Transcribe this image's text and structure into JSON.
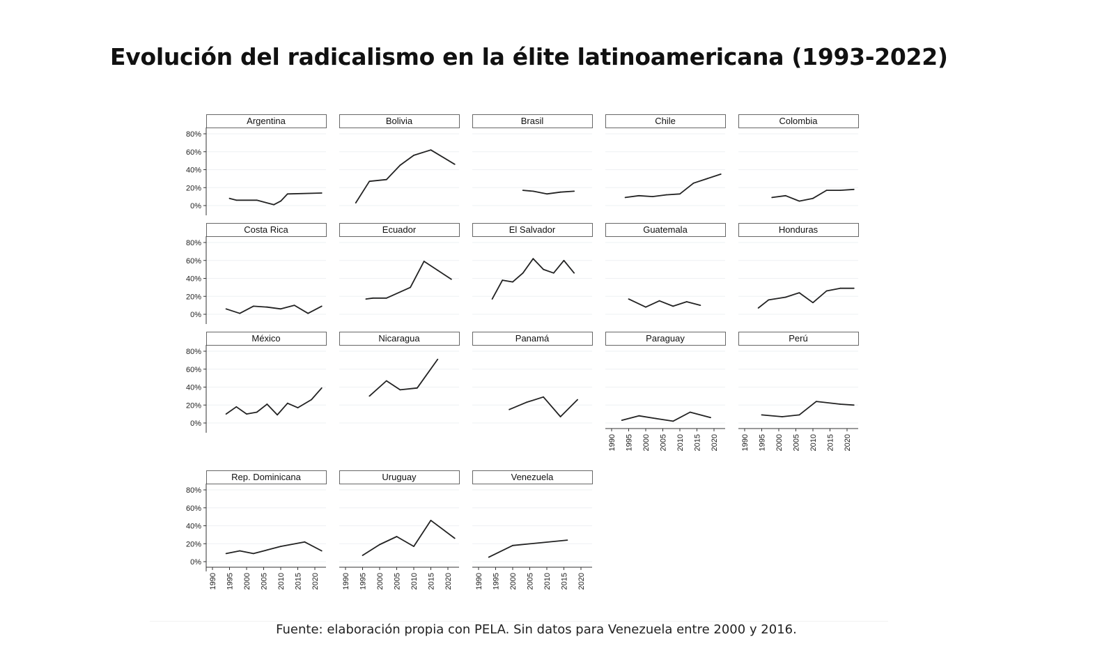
{
  "chart_data": {
    "type": "line",
    "title": "Evolución del radicalismo en la élite latinoamericana (1993-2022)",
    "note": "Fuente: elaboración propia con PELA. Sin datos para Venezuela entre 2000 y 2016.",
    "xlabel": "",
    "ylabel": "",
    "xlim": [
      1988,
      2023
    ],
    "ylim": [
      0,
      80
    ],
    "x_ticks": [
      "1990",
      "1995",
      "2000",
      "2005",
      "2010",
      "2015",
      "2020"
    ],
    "y_ticks": [
      "0%",
      "20%",
      "40%",
      "60%",
      "80%"
    ],
    "grid": true,
    "panels": [
      {
        "name": "Argentina",
        "points": [
          [
            1995,
            8
          ],
          [
            1997,
            6
          ],
          [
            2003,
            6
          ],
          [
            2008,
            1
          ],
          [
            2010,
            5
          ],
          [
            2012,
            13
          ],
          [
            2022,
            14
          ]
        ]
      },
      {
        "name": "Bolivia",
        "points": [
          [
            1993,
            3
          ],
          [
            1997,
            27
          ],
          [
            2002,
            29
          ],
          [
            2006,
            45
          ],
          [
            2010,
            56
          ],
          [
            2015,
            62
          ],
          [
            2022,
            46
          ]
        ]
      },
      {
        "name": "Brasil",
        "points": [
          [
            2003,
            17
          ],
          [
            2006,
            16
          ],
          [
            2010,
            13
          ],
          [
            2014,
            15
          ],
          [
            2018,
            16
          ]
        ]
      },
      {
        "name": "Chile",
        "points": [
          [
            1994,
            9
          ],
          [
            1998,
            11
          ],
          [
            2002,
            10
          ],
          [
            2006,
            12
          ],
          [
            2010,
            13
          ],
          [
            2014,
            25
          ],
          [
            2022,
            35
          ]
        ]
      },
      {
        "name": "Colombia",
        "points": [
          [
            1998,
            9
          ],
          [
            2002,
            11
          ],
          [
            2006,
            5
          ],
          [
            2010,
            8
          ],
          [
            2014,
            17
          ],
          [
            2018,
            17
          ],
          [
            2022,
            18
          ]
        ]
      },
      {
        "name": "Costa Rica",
        "points": [
          [
            1994,
            6
          ],
          [
            1998,
            1
          ],
          [
            2002,
            9
          ],
          [
            2006,
            8
          ],
          [
            2010,
            6
          ],
          [
            2014,
            10
          ],
          [
            2018,
            1
          ],
          [
            2022,
            9
          ]
        ]
      },
      {
        "name": "Ecuador",
        "points": [
          [
            1996,
            17
          ],
          [
            1998,
            18
          ],
          [
            2002,
            18
          ],
          [
            2009,
            30
          ],
          [
            2013,
            59
          ],
          [
            2017,
            49
          ],
          [
            2021,
            39
          ]
        ]
      },
      {
        "name": "El Salvador",
        "points": [
          [
            1994,
            17
          ],
          [
            1997,
            38
          ],
          [
            2000,
            36
          ],
          [
            2003,
            46
          ],
          [
            2006,
            62
          ],
          [
            2009,
            50
          ],
          [
            2012,
            46
          ],
          [
            2015,
            60
          ],
          [
            2018,
            46
          ]
        ]
      },
      {
        "name": "Guatemala",
        "points": [
          [
            1995,
            17
          ],
          [
            2000,
            8
          ],
          [
            2004,
            15
          ],
          [
            2008,
            9
          ],
          [
            2012,
            14
          ],
          [
            2016,
            10
          ]
        ]
      },
      {
        "name": "Honduras",
        "points": [
          [
            1994,
            7
          ],
          [
            1997,
            16
          ],
          [
            2002,
            19
          ],
          [
            2006,
            24
          ],
          [
            2010,
            13
          ],
          [
            2014,
            26
          ],
          [
            2018,
            29
          ],
          [
            2022,
            29
          ]
        ]
      },
      {
        "name": "México",
        "points": [
          [
            1994,
            10
          ],
          [
            1997,
            18
          ],
          [
            2000,
            10
          ],
          [
            2003,
            12
          ],
          [
            2006,
            21
          ],
          [
            2009,
            9
          ],
          [
            2012,
            22
          ],
          [
            2015,
            17
          ],
          [
            2019,
            26
          ],
          [
            2022,
            39
          ]
        ]
      },
      {
        "name": "Nicaragua",
        "points": [
          [
            1997,
            30
          ],
          [
            2002,
            47
          ],
          [
            2006,
            37
          ],
          [
            2011,
            39
          ],
          [
            2017,
            71
          ]
        ]
      },
      {
        "name": "Panamá",
        "points": [
          [
            1999,
            15
          ],
          [
            2004,
            23
          ],
          [
            2009,
            29
          ],
          [
            2014,
            7
          ],
          [
            2019,
            26
          ]
        ]
      },
      {
        "name": "Paraguay",
        "points": [
          [
            1993,
            3
          ],
          [
            1998,
            8
          ],
          [
            2003,
            5
          ],
          [
            2008,
            2
          ],
          [
            2013,
            12
          ],
          [
            2019,
            6
          ]
        ]
      },
      {
        "name": "Perú",
        "points": [
          [
            1995,
            9
          ],
          [
            2001,
            7
          ],
          [
            2006,
            9
          ],
          [
            2011,
            24
          ],
          [
            2018,
            21
          ],
          [
            2022,
            20
          ]
        ]
      },
      {
        "name": "Rep. Dominicana",
        "points": [
          [
            1994,
            9
          ],
          [
            1998,
            12
          ],
          [
            2002,
            9
          ],
          [
            2006,
            13
          ],
          [
            2010,
            17
          ],
          [
            2017,
            22
          ],
          [
            2022,
            12
          ]
        ]
      },
      {
        "name": "Uruguay",
        "points": [
          [
            1995,
            7
          ],
          [
            2000,
            19
          ],
          [
            2005,
            28
          ],
          [
            2010,
            17
          ],
          [
            2015,
            46
          ],
          [
            2022,
            26
          ]
        ]
      },
      {
        "name": "Venezuela",
        "points": [
          [
            1993,
            5
          ],
          [
            2000,
            18
          ],
          [
            2016,
            24
          ]
        ]
      }
    ]
  }
}
